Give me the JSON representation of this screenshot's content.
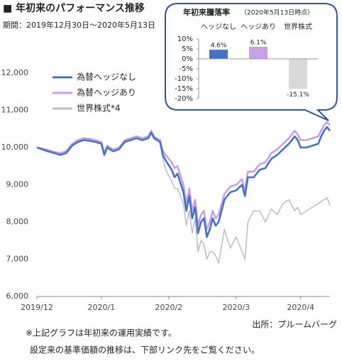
{
  "header": {
    "title": "■ 年初来のパフォーマンス推移",
    "period": "期間：2019年12月30日～2020年5月13日"
  },
  "chart_data": [
    {
      "type": "line",
      "x": [
        0,
        3,
        6,
        8,
        10,
        12,
        14,
        16,
        18,
        20,
        22,
        23,
        24,
        26,
        28,
        30,
        32,
        34,
        36,
        38,
        39,
        40,
        42,
        43,
        44,
        46,
        47,
        48,
        50,
        51,
        52,
        53,
        54,
        55,
        56,
        57,
        58,
        59,
        60,
        61,
        62,
        64,
        66,
        68,
        70,
        71,
        72,
        74,
        76,
        78,
        80,
        82,
        84,
        86,
        88,
        89,
        90,
        92,
        94,
        96,
        97,
        98,
        99,
        100
      ],
      "xlim": [
        0,
        100
      ],
      "xticks": [
        {
          "value": 0,
          "label": "2019/12"
        },
        {
          "value": 22,
          "label": "2020/1"
        },
        {
          "value": 45,
          "label": "2020/2"
        },
        {
          "value": 68,
          "label": "2020/3"
        },
        {
          "value": 90,
          "label": "2020/4"
        }
      ],
      "ylim": [
        6000,
        12000
      ],
      "yticks": [
        {
          "value": 6000,
          "label": "6,000"
        },
        {
          "value": 7000,
          "label": "7,000"
        },
        {
          "value": 8000,
          "label": "8,000"
        },
        {
          "value": 9000,
          "label": "9,000"
        },
        {
          "value": 10000,
          "label": "10,000"
        },
        {
          "value": 11000,
          "label": "11,000"
        },
        {
          "value": 12000,
          "label": "12,000"
        }
      ],
      "grid": false,
      "legend": "upper left",
      "series": [
        {
          "name": "為替ヘッジなし",
          "color": "#4472c4",
          "values": [
            10000,
            9920,
            9850,
            9800,
            9850,
            10050,
            10150,
            10200,
            10180,
            10150,
            10100,
            9800,
            10000,
            9900,
            9950,
            10150,
            10200,
            10250,
            10200,
            10250,
            10400,
            10250,
            10150,
            9800,
            9650,
            9400,
            9200,
            9300,
            8800,
            8300,
            8700,
            8100,
            8400,
            7700,
            8000,
            8100,
            7600,
            7800,
            8100,
            7900,
            8000,
            8600,
            8800,
            8850,
            9000,
            8700,
            9200,
            9200,
            9400,
            9450,
            9700,
            9800,
            9950,
            10100,
            10300,
            10200,
            10000,
            10000,
            10050,
            10100,
            10300,
            10450,
            10550,
            10450
          ]
        },
        {
          "name": "為替ヘッジあり",
          "color": "#c9a0e6",
          "values": [
            10000,
            9950,
            9880,
            9850,
            9900,
            10100,
            10200,
            10250,
            10220,
            10200,
            10150,
            9850,
            10050,
            9950,
            10000,
            10200,
            10250,
            10300,
            10250,
            10300,
            10450,
            10300,
            10200,
            9900,
            9800,
            9600,
            9450,
            9500,
            9000,
            8500,
            8900,
            8300,
            8600,
            7900,
            8200,
            8300,
            7800,
            8000,
            8300,
            8100,
            8200,
            8750,
            8950,
            9000,
            9150,
            8850,
            9350,
            9350,
            9550,
            9600,
            9850,
            9950,
            10100,
            10250,
            10450,
            10350,
            10200,
            10200,
            10250,
            10300,
            10450,
            10600,
            10680,
            10600
          ]
        },
        {
          "name": "世界株式*4",
          "color": "#bfbfbf",
          "values": [
            10000,
            9900,
            9850,
            9800,
            9850,
            10050,
            10200,
            10250,
            10250,
            10200,
            10150,
            9850,
            10050,
            9950,
            10000,
            10150,
            10200,
            10250,
            10200,
            10250,
            10450,
            10300,
            10150,
            9700,
            9400,
            9100,
            8900,
            8900,
            8500,
            7900,
            8300,
            7700,
            8100,
            7200,
            7500,
            7400,
            7000,
            7200,
            7200,
            7100,
            6900,
            7800,
            7300,
            7600,
            7200,
            7000,
            8000,
            8300,
            8300,
            8000,
            8350,
            8200,
            8500,
            8600,
            8300,
            8400,
            8200,
            8300,
            8400,
            8500,
            8550,
            8600,
            8650,
            8450
          ]
        }
      ]
    },
    {
      "type": "bar",
      "title": "年初来騰落率",
      "subtitle": "（2020年5月13日時点）",
      "categories": [
        "ヘッジなし",
        "ヘッジあり",
        "世界株式"
      ],
      "values": [
        4.6,
        6.1,
        -15.1
      ],
      "value_labels": [
        "4.6%",
        "6.1%",
        "-15.1%"
      ],
      "colors": [
        "#4472c4",
        "#c9a0e6",
        "#d9d9d9"
      ],
      "ylim": [
        -20,
        10
      ],
      "yticks": [
        {
          "value": -20,
          "label": "-20%"
        },
        {
          "value": -15,
          "label": "-15%"
        },
        {
          "value": -10,
          "label": "-10%"
        },
        {
          "value": -5,
          "label": "-5%"
        },
        {
          "value": 0,
          "label": "0%"
        },
        {
          "value": 5,
          "label": "5%"
        },
        {
          "value": 10,
          "label": "10%"
        }
      ]
    }
  ],
  "footer": {
    "source": "出所：ブルームバーグ",
    "notes": [
      "※上記グラフは年初来の運用実績です。",
      "設定来の基準価額の推移は、下部リンク先をご覧ください。"
    ]
  }
}
